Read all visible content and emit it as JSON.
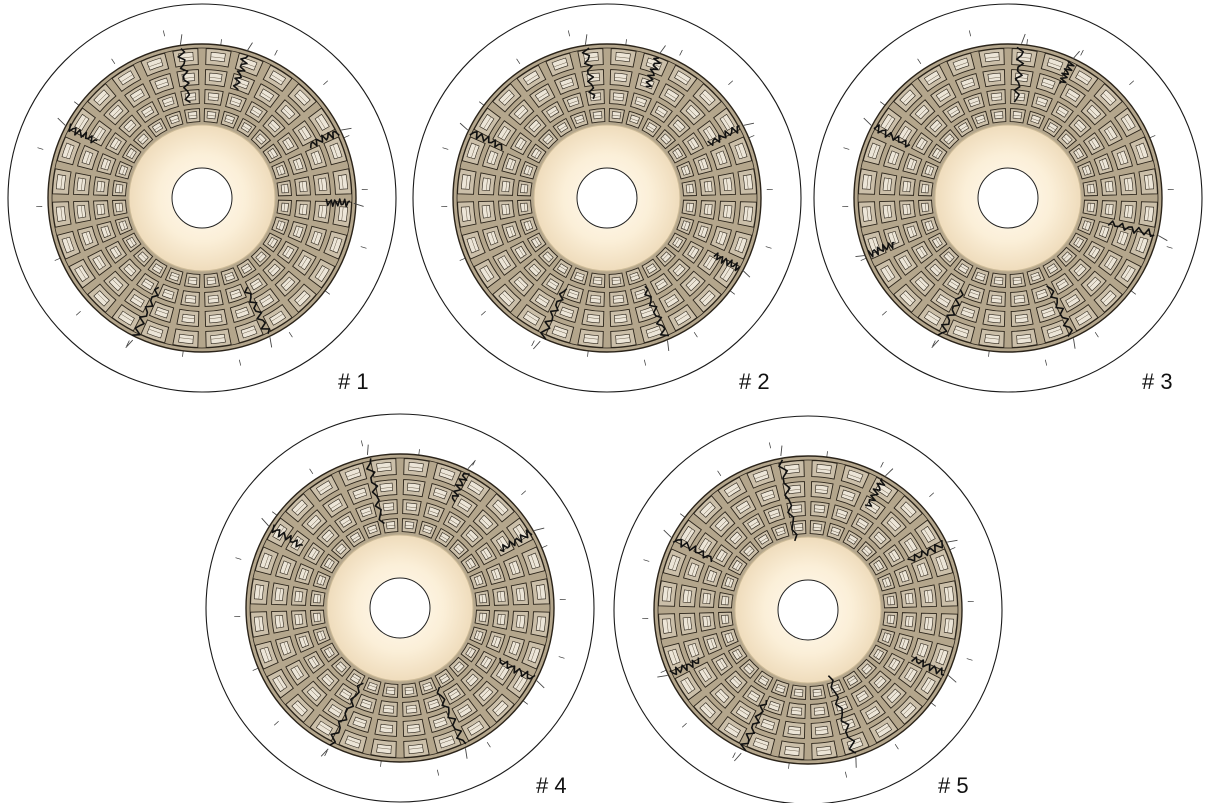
{
  "panels": [
    {
      "label": "# 1",
      "cracks": [
        [
          -8,
          0.98,
          0.6
        ],
        [
          17,
          0.97,
          0.35
        ],
        [
          64,
          0.98,
          0.3
        ],
        [
          -62,
          0.98,
          0.3
        ],
        [
          -154,
          1.0,
          0.6
        ],
        [
          154,
          0.98,
          0.55
        ],
        [
          92,
          0.96,
          0.2
        ]
      ]
    },
    {
      "label": "# 2",
      "cracks": [
        [
          -8,
          0.98,
          0.55
        ],
        [
          20,
          0.97,
          0.3
        ],
        [
          62,
          0.98,
          0.35
        ],
        [
          -64,
          0.98,
          0.35
        ],
        [
          -155,
          1.0,
          0.6
        ],
        [
          157,
          0.98,
          0.6
        ],
        [
          118,
          0.97,
          0.25
        ]
      ]
    },
    {
      "label": "# 3",
      "cracks": [
        [
          5,
          0.98,
          0.6
        ],
        [
          25,
          0.97,
          0.2
        ],
        [
          -62,
          0.98,
          0.4
        ],
        [
          104,
          0.98,
          0.5
        ],
        [
          -154,
          1.0,
          0.55
        ],
        [
          155,
          0.98,
          0.6
        ],
        [
          -112,
          0.97,
          0.25
        ]
      ]
    },
    {
      "label": "# 4",
      "cracks": [
        [
          -12,
          0.99,
          0.75
        ],
        [
          26,
          0.98,
          0.3
        ],
        [
          -58,
          0.98,
          0.35
        ],
        [
          60,
          0.98,
          0.35
        ],
        [
          -153,
          1.0,
          0.8
        ],
        [
          155,
          0.98,
          0.7
        ],
        [
          118,
          0.98,
          0.4
        ]
      ]
    },
    {
      "label": "# 5",
      "cracks": [
        [
          -10,
          0.99,
          0.95
        ],
        [
          30,
          0.98,
          0.3
        ],
        [
          -62,
          0.98,
          0.45
        ],
        [
          64,
          0.98,
          0.4
        ],
        [
          -155,
          1.0,
          0.6
        ],
        [
          162,
          0.98,
          0.95
        ],
        [
          115,
          0.98,
          0.35
        ],
        [
          -115,
          0.98,
          0.3
        ]
      ]
    }
  ],
  "colors": {
    "outer_ring": "#1a1a1a",
    "coffer_fill": "#cbbfa9",
    "coffer_line": "#2b241a",
    "rib": "#b4a68c",
    "center_glow": "#fdf3e0",
    "center_edge": "#f2e2c6",
    "crack": "#111111"
  }
}
